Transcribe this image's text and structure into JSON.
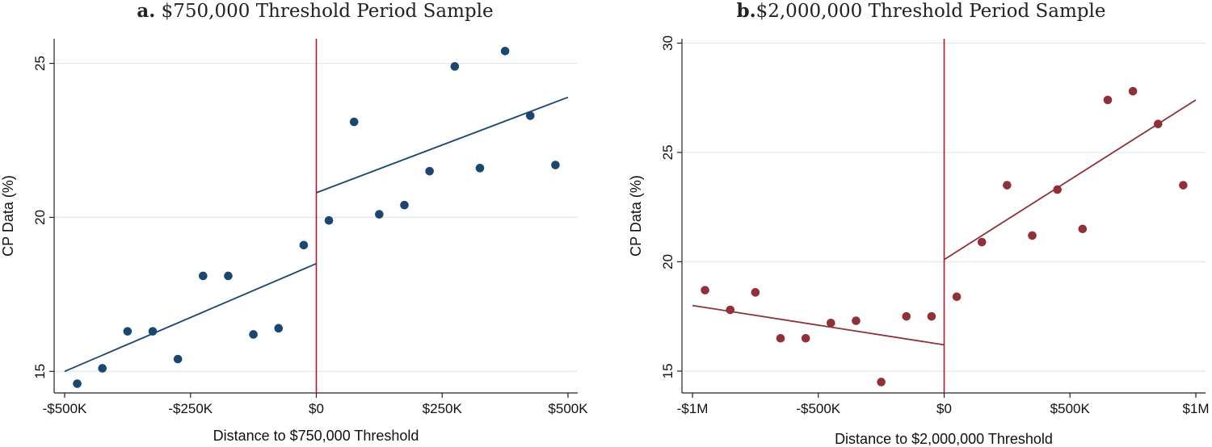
{
  "chart_data": [
    {
      "type": "scatter",
      "panel_tag": "a.",
      "title": "$750,000 Threshold Period Sample",
      "xlabel": "Distance to $750,000 Threshold",
      "ylabel": "CP Data (%)",
      "xlim": [
        -500000,
        500000
      ],
      "ylim": [
        14.3,
        25.8
      ],
      "x_ticks": [
        -500000,
        -250000,
        0,
        250000,
        500000
      ],
      "x_tick_labels": [
        "-$500K",
        "-$250K",
        "$0",
        "$250K",
        "$500K"
      ],
      "y_ticks": [
        15,
        20,
        25
      ],
      "y_tick_labels": [
        "15",
        "20",
        "25"
      ],
      "grid": true,
      "cutoff": 0,
      "point_color": "#1a476f",
      "line_color": "#1a476f",
      "cutoff_color": "#b2182b",
      "points": [
        {
          "x": -475000,
          "y": 14.6
        },
        {
          "x": -425000,
          "y": 15.1
        },
        {
          "x": -375000,
          "y": 16.3
        },
        {
          "x": -325000,
          "y": 16.3
        },
        {
          "x": -275000,
          "y": 15.4
        },
        {
          "x": -225000,
          "y": 18.1
        },
        {
          "x": -175000,
          "y": 18.1
        },
        {
          "x": -125000,
          "y": 16.2
        },
        {
          "x": -75000,
          "y": 16.4
        },
        {
          "x": -25000,
          "y": 19.1
        },
        {
          "x": 25000,
          "y": 19.9
        },
        {
          "x": 75000,
          "y": 23.1
        },
        {
          "x": 125000,
          "y": 20.1
        },
        {
          "x": 175000,
          "y": 20.4
        },
        {
          "x": 225000,
          "y": 21.5
        },
        {
          "x": 275000,
          "y": 24.9
        },
        {
          "x": 325000,
          "y": 21.6
        },
        {
          "x": 375000,
          "y": 25.4
        },
        {
          "x": 425000,
          "y": 23.3
        },
        {
          "x": 475000,
          "y": 21.7
        }
      ],
      "fit_lines": [
        {
          "x": [
            -500000,
            0
          ],
          "y": [
            15.0,
            18.5
          ]
        },
        {
          "x": [
            0,
            500000
          ],
          "y": [
            20.8,
            23.9
          ]
        }
      ]
    },
    {
      "type": "scatter",
      "panel_tag": "b.",
      "title": "$2,000,000 Threshold Period Sample",
      "xlabel": "Distance to $2,000,000 Threshold",
      "ylabel": "CP Data (%)",
      "xlim": [
        -1000000,
        1000000
      ],
      "ylim": [
        14.0,
        30.2
      ],
      "x_ticks": [
        -1000000,
        -500000,
        0,
        500000,
        1000000
      ],
      "x_tick_labels": [
        "-$1M",
        "-$500K",
        "$0",
        "$500K",
        "$1M"
      ],
      "y_ticks": [
        15,
        20,
        25,
        30
      ],
      "y_tick_labels": [
        "15",
        "20",
        "25",
        "30"
      ],
      "grid": true,
      "cutoff": 0,
      "point_color": "#903038",
      "line_color": "#903038",
      "cutoff_color": "#b2182b",
      "points": [
        {
          "x": -950000,
          "y": 18.7
        },
        {
          "x": -850000,
          "y": 17.8
        },
        {
          "x": -750000,
          "y": 18.6
        },
        {
          "x": -650000,
          "y": 16.5
        },
        {
          "x": -550000,
          "y": 16.5
        },
        {
          "x": -450000,
          "y": 17.2
        },
        {
          "x": -350000,
          "y": 17.3
        },
        {
          "x": -250000,
          "y": 14.5
        },
        {
          "x": -150000,
          "y": 17.5
        },
        {
          "x": -50000,
          "y": 17.5
        },
        {
          "x": 50000,
          "y": 18.4
        },
        {
          "x": 150000,
          "y": 20.9
        },
        {
          "x": 250000,
          "y": 23.5
        },
        {
          "x": 350000,
          "y": 21.2
        },
        {
          "x": 450000,
          "y": 23.3
        },
        {
          "x": 550000,
          "y": 21.5
        },
        {
          "x": 650000,
          "y": 27.4
        },
        {
          "x": 750000,
          "y": 27.8
        },
        {
          "x": 850000,
          "y": 26.3
        },
        {
          "x": 950000,
          "y": 23.5
        }
      ],
      "fit_lines": [
        {
          "x": [
            -1000000,
            0
          ],
          "y": [
            18.0,
            16.2
          ]
        },
        {
          "x": [
            0,
            1000000
          ],
          "y": [
            20.1,
            27.4
          ]
        }
      ]
    }
  ]
}
